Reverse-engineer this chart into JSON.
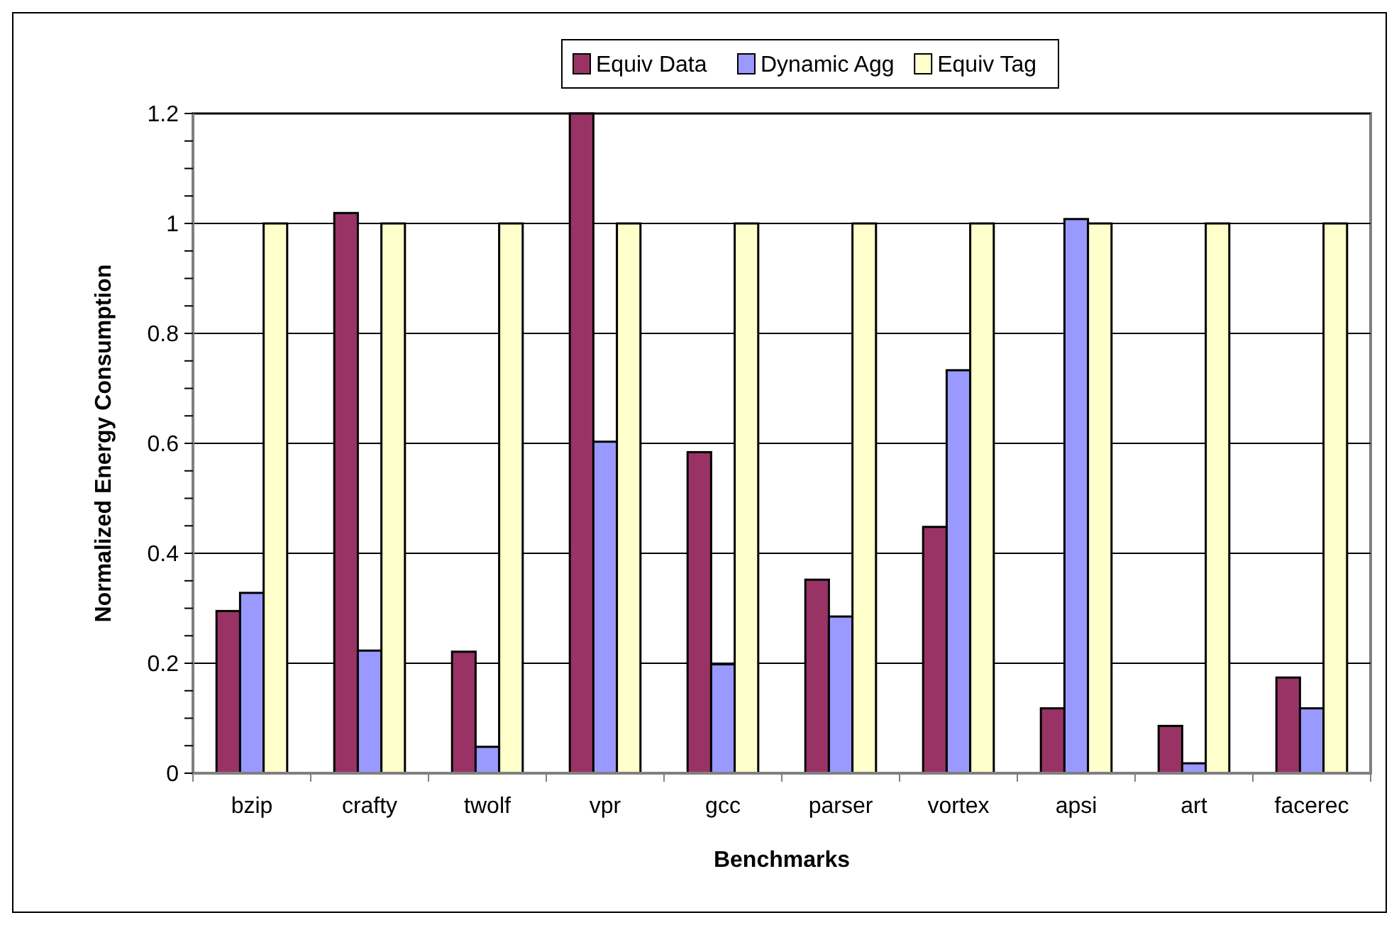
{
  "chart_data": {
    "type": "bar",
    "xlabel": "Benchmarks",
    "ylabel": "Normalized Energy Consumption",
    "categories": [
      "bzip",
      "crafty",
      "twolf",
      "vpr",
      "gcc",
      "parser",
      "vortex",
      "apsi",
      "art",
      "facerec"
    ],
    "series": [
      {
        "name": "Equiv Data",
        "color": "#993366",
        "values": [
          0.295,
          1.019,
          0.221,
          1.2,
          0.584,
          0.352,
          0.448,
          0.118,
          0.086,
          0.174
        ]
      },
      {
        "name": "Dynamic Agg",
        "color": "#9999ff",
        "values": [
          0.328,
          0.223,
          0.048,
          0.603,
          0.198,
          0.285,
          0.733,
          1.008,
          0.018,
          0.118
        ]
      },
      {
        "name": "Equiv Tag",
        "color": "#ffffcc",
        "values": [
          1,
          1,
          1,
          1,
          1,
          1,
          1,
          1,
          1,
          1
        ]
      }
    ],
    "ylim": [
      0,
      1.2
    ],
    "yticks": [
      0,
      {
        "value": 0.05,
        "label": null
      },
      {
        "value": 0.1,
        "label": null
      },
      {
        "value": 0.15,
        "label": null
      },
      0.2,
      {
        "value": 0.25,
        "label": null
      },
      {
        "value": 0.3,
        "label": null
      },
      {
        "value": 0.35,
        "label": null
      },
      0.4,
      {
        "value": 0.45,
        "label": null
      },
      {
        "value": 0.5,
        "label": null
      },
      {
        "value": 0.55,
        "label": null
      },
      0.6,
      {
        "value": 0.65,
        "label": null
      },
      {
        "value": 0.7,
        "label": null
      },
      {
        "value": 0.75,
        "label": null
      },
      0.8,
      {
        "value": 0.85,
        "label": null
      },
      {
        "value": 0.9,
        "label": null
      },
      {
        "value": 0.95,
        "label": null
      },
      1,
      {
        "value": 1.05,
        "label": null
      },
      {
        "value": 1.1,
        "label": null
      },
      {
        "value": 1.15,
        "label": null
      },
      1.2
    ],
    "grid": "y",
    "legend": "top"
  }
}
